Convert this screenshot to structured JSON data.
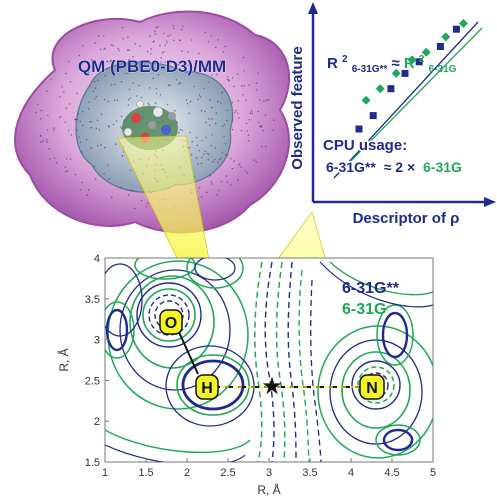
{
  "colors": {
    "dark_blue": "#1f2a8c",
    "green": "#1fa85a",
    "purple_membrane": "#a23ea8",
    "yellow_highlight": "#f4f425",
    "black": "#111111"
  },
  "membrane_panel": {
    "label": "QM (PBE0-D3)/MM"
  },
  "correlation_panel": {
    "ylabel": "Observed feature",
    "xlabel": "Descriptor of ρ",
    "relation": {
      "r_left": "R",
      "sup_left": "2",
      "sub_left": "6-31G**",
      "approx": "≈",
      "r_right": "R",
      "sup_right": "2",
      "sub_right": "6-31G"
    },
    "cpu_title": "CPU usage:",
    "cpu_lhs": "6-31G**",
    "cpu_mid": "≈ 2 ×",
    "cpu_rhs": "6-31G",
    "blue_squares": [
      [
        0.26,
        0.62
      ],
      [
        0.34,
        0.55
      ],
      [
        0.44,
        0.41
      ],
      [
        0.52,
        0.33
      ],
      [
        0.6,
        0.27
      ],
      [
        0.72,
        0.19
      ],
      [
        0.81,
        0.1
      ]
    ],
    "green_diamonds": [
      [
        0.3,
        0.47
      ],
      [
        0.38,
        0.41
      ],
      [
        0.47,
        0.33
      ],
      [
        0.56,
        0.26
      ],
      [
        0.64,
        0.22
      ],
      [
        0.75,
        0.14
      ],
      [
        0.85,
        0.07
      ]
    ]
  },
  "contour_panel": {
    "xlabel": "R, Å",
    "ylabel": "R, Å",
    "xticks": [
      "1",
      "1.5",
      "2",
      "2.5",
      "3",
      "3.5",
      "4",
      "4.5",
      "5"
    ],
    "yticks": [
      "1.5",
      "2",
      "2.5",
      "3",
      "3.5",
      "4"
    ],
    "xlim": [
      1,
      5
    ],
    "ylim": [
      1.5,
      4
    ],
    "legend": [
      "6-31G**",
      "6-31G"
    ],
    "atoms": {
      "O": {
        "label": "O",
        "x": 1.9,
        "y": 3.0
      },
      "H": {
        "label": "H",
        "x": 2.2,
        "y": 2.42
      },
      "N": {
        "label": "N",
        "x": 4.35,
        "y": 2.42
      }
    },
    "critical_point_symbol": "★",
    "critical_point": {
      "x": 3.05,
      "y": 2.42
    }
  }
}
